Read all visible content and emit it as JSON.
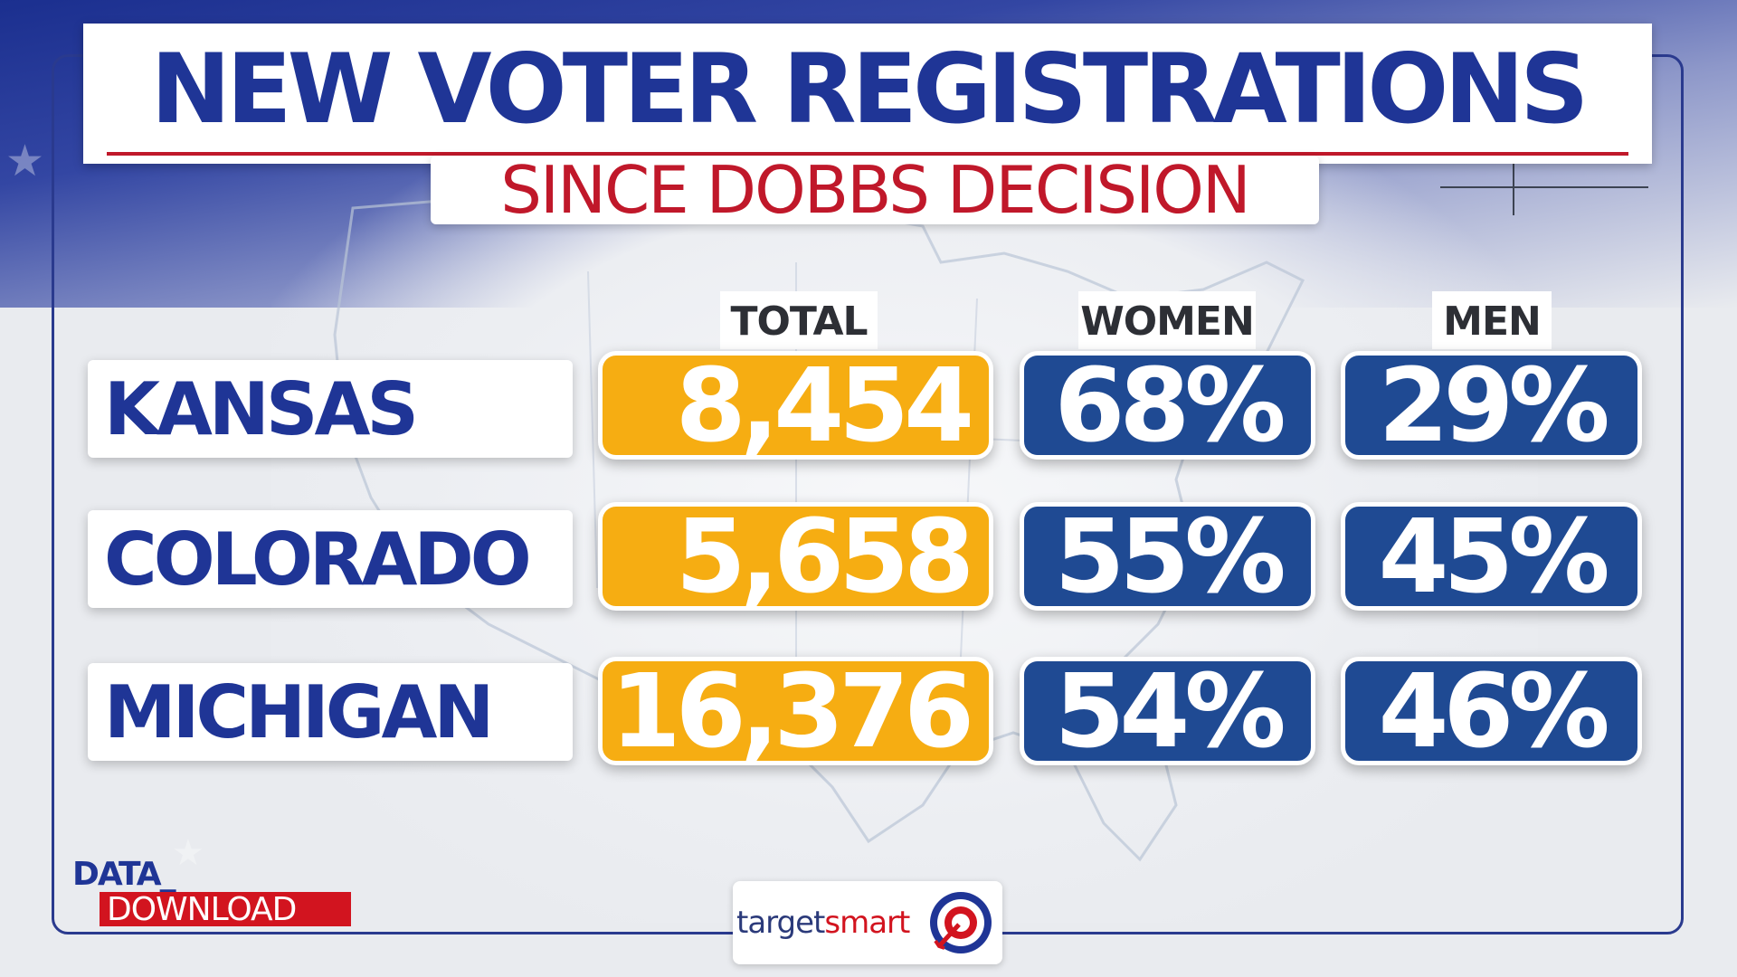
{
  "title": "NEW VOTER REGISTRATIONS",
  "subtitle": "SINCE DOBBS DECISION",
  "colors": {
    "title": "#1f3596",
    "subtitle": "#c0182a",
    "total_fill": "#f6ad12",
    "percent_fill": "#1f4a93"
  },
  "chart_data": {
    "type": "table",
    "columns": [
      "TOTAL",
      "WOMEN",
      "MEN"
    ],
    "rows": [
      {
        "state": "KANSAS",
        "total": "8,454",
        "women": "68%",
        "men": "29%"
      },
      {
        "state": "COLORADO",
        "total": "5,658",
        "women": "55%",
        "men": "45%"
      },
      {
        "state": "MICHIGAN",
        "total": "16,376",
        "women": "54%",
        "men": "46%"
      }
    ]
  },
  "branding": {
    "show_label_top": "DATA_",
    "show_label_bottom": "DOWNLOAD",
    "source_prefix": "target",
    "source_suffix": "smart",
    "source_icon": "target-bullseye-icon"
  }
}
